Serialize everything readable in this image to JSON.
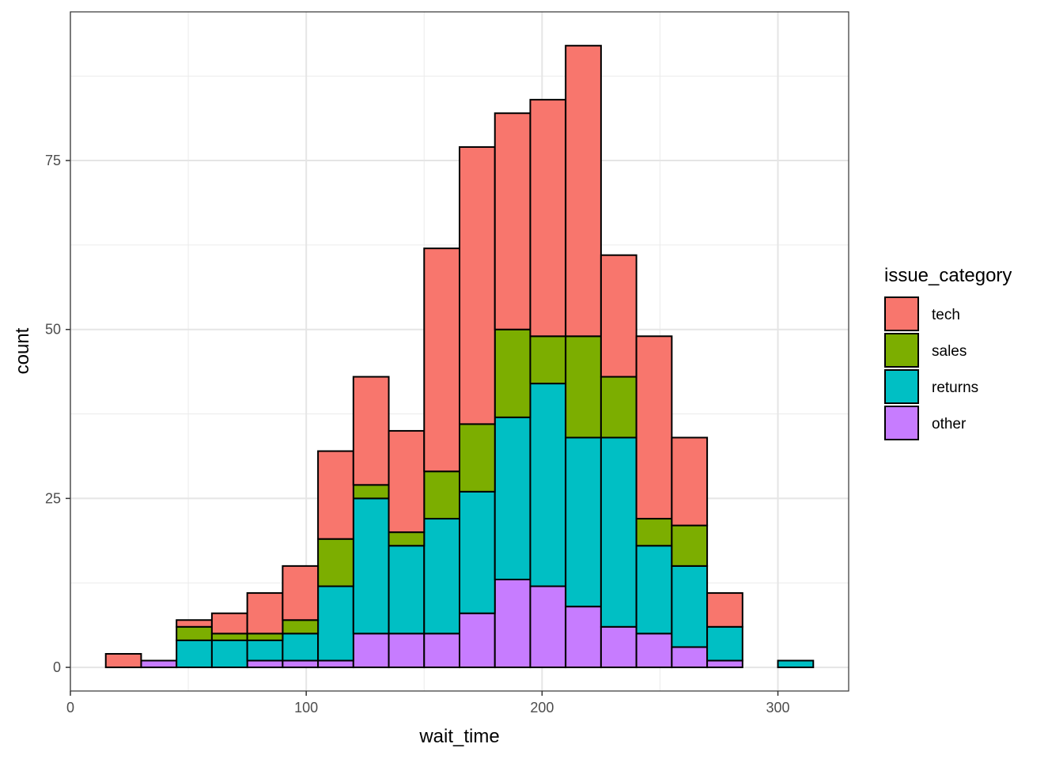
{
  "chart_data": {
    "type": "bar",
    "subtype": "stacked-histogram",
    "xlabel": "wait_time",
    "ylabel": "count",
    "xlim": [
      0,
      330
    ],
    "ylim": [
      -3.5,
      97
    ],
    "xticks": [
      0,
      100,
      200,
      300
    ],
    "xtick_labels": [
      "0",
      "100",
      "200",
      "300"
    ],
    "yticks": [
      0,
      25,
      50,
      75
    ],
    "ytick_labels": [
      "0",
      "25",
      "50",
      "75"
    ],
    "grid": true,
    "bin_width": 15,
    "bins": [
      [
        15,
        30
      ],
      [
        30,
        45
      ],
      [
        45,
        60
      ],
      [
        60,
        75
      ],
      [
        75,
        90
      ],
      [
        90,
        105
      ],
      [
        105,
        120
      ],
      [
        120,
        135
      ],
      [
        135,
        150
      ],
      [
        150,
        165
      ],
      [
        165,
        180
      ],
      [
        180,
        195
      ],
      [
        195,
        210
      ],
      [
        210,
        225
      ],
      [
        225,
        240
      ],
      [
        240,
        255
      ],
      [
        255,
        270
      ],
      [
        270,
        285
      ],
      [
        285,
        300
      ],
      [
        300,
        315
      ]
    ],
    "legend": {
      "title": "issue_category",
      "position": "right"
    },
    "series": [
      {
        "name": "other",
        "color": "#C77CFF",
        "values": [
          0,
          1,
          0,
          0,
          1,
          1,
          1,
          5,
          5,
          5,
          8,
          13,
          12,
          9,
          6,
          5,
          3,
          1,
          0,
          0
        ]
      },
      {
        "name": "returns",
        "color": "#00BFC4",
        "values": [
          0,
          0,
          4,
          4,
          3,
          4,
          11,
          20,
          13,
          17,
          18,
          24,
          30,
          25,
          28,
          13,
          12,
          5,
          0,
          1
        ]
      },
      {
        "name": "sales",
        "color": "#7CAE00",
        "values": [
          0,
          0,
          2,
          1,
          1,
          2,
          7,
          2,
          2,
          7,
          10,
          13,
          7,
          15,
          9,
          4,
          6,
          0,
          0,
          0
        ]
      },
      {
        "name": "tech",
        "color": "#F8766D",
        "values": [
          2,
          0,
          1,
          3,
          6,
          8,
          13,
          16,
          15,
          33,
          41,
          32,
          35,
          43,
          18,
          27,
          13,
          5,
          0,
          0
        ]
      }
    ],
    "legend_order": [
      "tech",
      "sales",
      "returns",
      "other"
    ]
  }
}
